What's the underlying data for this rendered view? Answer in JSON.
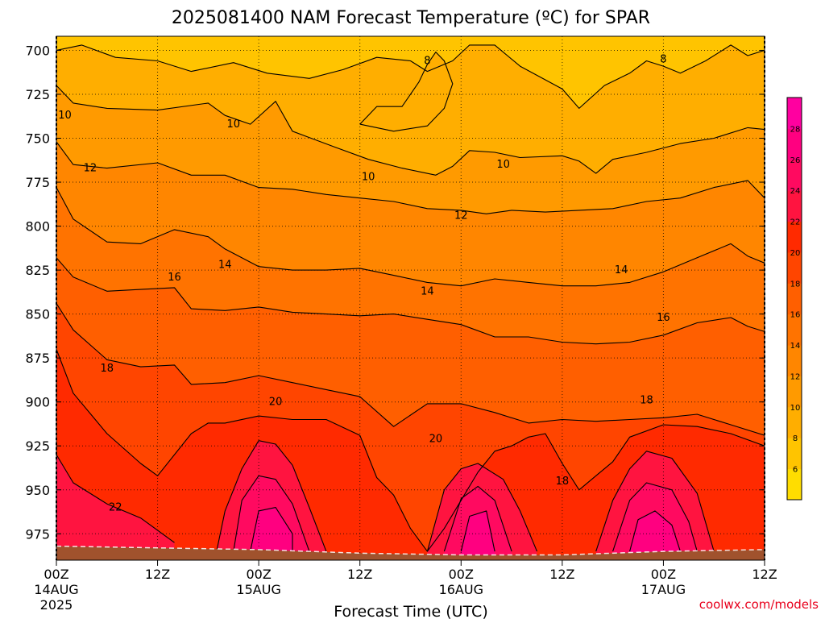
{
  "chart_data": {
    "type": "heatmap",
    "title": "2025081400 NAM Forecast Temperature (ºC) for SPAR",
    "xlabel": "Forecast Time (UTC)",
    "ylabel": "",
    "credit": "coolwx.com/models",
    "x_hours_range": [
      0,
      84
    ],
    "x_ticks": [
      {
        "hour": 0,
        "label": "00Z",
        "sub": "14AUG",
        "year": "2025"
      },
      {
        "hour": 12,
        "label": "12Z",
        "sub": "",
        "year": ""
      },
      {
        "hour": 24,
        "label": "00Z",
        "sub": "15AUG",
        "year": ""
      },
      {
        "hour": 36,
        "label": "12Z",
        "sub": "",
        "year": ""
      },
      {
        "hour": 48,
        "label": "00Z",
        "sub": "16AUG",
        "year": ""
      },
      {
        "hour": 60,
        "label": "12Z",
        "sub": "",
        "year": ""
      },
      {
        "hour": 72,
        "label": "00Z",
        "sub": "17AUG",
        "year": ""
      },
      {
        "hour": 84,
        "label": "12Z",
        "sub": "",
        "year": ""
      }
    ],
    "y_pressure_range_hPa": [
      692,
      990
    ],
    "y_ticks": [
      700,
      725,
      750,
      775,
      800,
      825,
      850,
      875,
      900,
      925,
      950,
      975
    ],
    "grid": "dotted",
    "colorbar": {
      "placement": "right",
      "levels": [
        4,
        6,
        8,
        10,
        12,
        14,
        16,
        18,
        20,
        22,
        24,
        26,
        28,
        30
      ],
      "tick_labels": [
        "6",
        "8",
        "10",
        "12",
        "14",
        "16",
        "18",
        "20",
        "22",
        "24",
        "26",
        "28"
      ],
      "colors": [
        "#ffdd00",
        "#ffc400",
        "#ffae00",
        "#ff9a00",
        "#ff8600",
        "#ff7300",
        "#ff5f00",
        "#ff4500",
        "#ff2a00",
        "#ff1440",
        "#ff0a60",
        "#ff0080",
        "#ff00a0"
      ]
    },
    "terrain_color": "#a0522d",
    "terrain_top_hPa": [
      {
        "hour": 0,
        "p": 982
      },
      {
        "hour": 24,
        "p": 984
      },
      {
        "hour": 36,
        "p": 986
      },
      {
        "hour": 48,
        "p": 987
      },
      {
        "hour": 60,
        "p": 987
      },
      {
        "hour": 72,
        "p": 985
      },
      {
        "hour": 84,
        "p": 984
      }
    ],
    "isotherms": [
      {
        "value": 8,
        "points": [
          [
            0,
            700
          ],
          [
            3,
            697
          ],
          [
            7,
            704
          ],
          [
            12,
            706
          ],
          [
            16,
            712
          ],
          [
            21,
            707
          ],
          [
            25,
            713
          ],
          [
            30,
            716
          ],
          [
            34,
            711
          ],
          [
            38,
            704
          ],
          [
            42,
            706
          ],
          [
            44,
            712
          ],
          [
            47,
            706
          ],
          [
            49,
            697
          ],
          [
            52,
            697
          ],
          [
            55,
            709
          ],
          [
            60,
            722
          ],
          [
            62,
            733
          ],
          [
            65,
            720
          ],
          [
            68,
            713
          ],
          [
            70,
            706
          ],
          [
            72,
            709
          ],
          [
            74,
            713
          ],
          [
            77,
            706
          ],
          [
            80,
            697
          ],
          [
            82,
            703
          ],
          [
            84,
            700
          ]
        ]
      },
      {
        "value": 8,
        "points": [
          [
            36,
            742
          ],
          [
            38,
            732
          ],
          [
            41,
            732
          ],
          [
            43,
            718
          ],
          [
            44,
            708
          ],
          [
            45,
            701
          ],
          [
            46,
            706
          ],
          [
            47,
            719
          ],
          [
            46,
            733
          ],
          [
            44,
            743
          ],
          [
            40,
            746
          ],
          [
            36,
            742
          ]
        ]
      },
      {
        "value": 10,
        "points": [
          [
            0,
            720
          ],
          [
            2,
            730
          ],
          [
            6,
            733
          ],
          [
            12,
            734
          ],
          [
            18,
            730
          ],
          [
            20,
            737
          ],
          [
            23,
            742
          ],
          [
            26,
            729
          ],
          [
            28,
            746
          ],
          [
            33,
            755
          ],
          [
            37,
            762
          ],
          [
            41,
            767
          ],
          [
            45,
            771
          ],
          [
            47,
            766
          ],
          [
            49,
            757
          ],
          [
            52,
            758
          ],
          [
            55,
            761
          ],
          [
            60,
            760
          ],
          [
            62,
            763
          ],
          [
            64,
            770
          ],
          [
            66,
            762
          ],
          [
            70,
            758
          ],
          [
            74,
            753
          ],
          [
            78,
            750
          ],
          [
            82,
            744
          ],
          [
            84,
            745
          ]
        ]
      },
      {
        "value": 12,
        "points": [
          [
            0,
            752
          ],
          [
            2,
            765
          ],
          [
            6,
            767
          ],
          [
            12,
            764
          ],
          [
            16,
            771
          ],
          [
            20,
            771
          ],
          [
            24,
            778
          ],
          [
            28,
            779
          ],
          [
            32,
            782
          ],
          [
            36,
            784
          ],
          [
            40,
            786
          ],
          [
            44,
            790
          ],
          [
            48,
            791
          ],
          [
            51,
            793
          ],
          [
            54,
            791
          ],
          [
            58,
            792
          ],
          [
            62,
            791
          ],
          [
            66,
            790
          ],
          [
            70,
            786
          ],
          [
            74,
            784
          ],
          [
            78,
            778
          ],
          [
            82,
            774
          ],
          [
            84,
            784
          ]
        ]
      },
      {
        "value": 14,
        "points": [
          [
            0,
            778
          ],
          [
            2,
            796
          ],
          [
            6,
            809
          ],
          [
            10,
            810
          ],
          [
            14,
            802
          ],
          [
            18,
            806
          ],
          [
            20,
            813
          ],
          [
            24,
            823
          ],
          [
            28,
            825
          ],
          [
            32,
            825
          ],
          [
            36,
            824
          ],
          [
            40,
            828
          ],
          [
            44,
            832
          ],
          [
            48,
            834
          ],
          [
            52,
            830
          ],
          [
            56,
            832
          ],
          [
            60,
            834
          ],
          [
            64,
            834
          ],
          [
            68,
            832
          ],
          [
            72,
            826
          ],
          [
            76,
            818
          ],
          [
            80,
            810
          ],
          [
            82,
            817
          ],
          [
            84,
            821
          ]
        ]
      },
      {
        "value": 16,
        "points": [
          [
            0,
            818
          ],
          [
            2,
            829
          ],
          [
            6,
            837
          ],
          [
            10,
            836
          ],
          [
            14,
            835
          ],
          [
            16,
            847
          ],
          [
            20,
            848
          ],
          [
            24,
            846
          ],
          [
            28,
            849
          ],
          [
            32,
            850
          ],
          [
            36,
            851
          ],
          [
            40,
            850
          ],
          [
            44,
            853
          ],
          [
            48,
            856
          ],
          [
            52,
            863
          ],
          [
            56,
            863
          ],
          [
            60,
            866
          ],
          [
            64,
            867
          ],
          [
            68,
            866
          ],
          [
            72,
            862
          ],
          [
            76,
            855
          ],
          [
            80,
            852
          ],
          [
            82,
            857
          ],
          [
            84,
            860
          ]
        ]
      },
      {
        "value": 18,
        "points": [
          [
            0,
            844
          ],
          [
            2,
            859
          ],
          [
            6,
            876
          ],
          [
            10,
            880
          ],
          [
            14,
            879
          ],
          [
            16,
            890
          ],
          [
            20,
            889
          ],
          [
            24,
            885
          ],
          [
            28,
            889
          ],
          [
            32,
            893
          ],
          [
            36,
            897
          ],
          [
            40,
            914
          ],
          [
            44,
            901
          ],
          [
            48,
            901
          ],
          [
            52,
            906
          ],
          [
            56,
            912
          ],
          [
            60,
            910
          ],
          [
            64,
            911
          ],
          [
            68,
            910
          ],
          [
            72,
            909
          ],
          [
            76,
            907
          ],
          [
            80,
            913
          ],
          [
            84,
            919
          ]
        ]
      },
      {
        "value": 20,
        "points": [
          [
            0,
            870
          ],
          [
            2,
            895
          ],
          [
            6,
            918
          ],
          [
            10,
            935
          ],
          [
            12,
            942
          ],
          [
            16,
            918
          ],
          [
            18,
            912
          ],
          [
            20,
            912
          ],
          [
            24,
            908
          ],
          [
            28,
            910
          ],
          [
            32,
            910
          ],
          [
            36,
            919
          ],
          [
            38,
            943
          ],
          [
            40,
            953
          ],
          [
            42,
            972
          ],
          [
            44,
            985
          ],
          [
            46,
            972
          ],
          [
            48,
            956
          ],
          [
            50,
            940
          ],
          [
            52,
            928
          ],
          [
            54,
            925
          ],
          [
            56,
            920
          ],
          [
            58,
            918
          ],
          [
            60,
            935
          ],
          [
            62,
            950
          ],
          [
            64,
            942
          ],
          [
            66,
            934
          ],
          [
            68,
            920
          ],
          [
            72,
            913
          ],
          [
            76,
            914
          ],
          [
            80,
            918
          ],
          [
            84,
            925
          ]
        ]
      },
      {
        "value": 22,
        "points": [
          [
            0,
            930
          ],
          [
            2,
            946
          ],
          [
            6,
            958
          ],
          [
            10,
            966
          ],
          [
            14,
            980
          ]
        ]
      },
      {
        "value": 22,
        "points": [
          [
            19,
            985
          ],
          [
            20,
            962
          ],
          [
            22,
            938
          ],
          [
            24,
            922
          ],
          [
            26,
            924
          ],
          [
            28,
            936
          ],
          [
            30,
            960
          ],
          [
            32,
            985
          ]
        ]
      },
      {
        "value": 22,
        "points": [
          [
            44,
            985
          ],
          [
            46,
            950
          ],
          [
            48,
            938
          ],
          [
            50,
            935
          ],
          [
            53,
            944
          ],
          [
            55,
            962
          ],
          [
            57,
            985
          ]
        ]
      },
      {
        "value": 22,
        "points": [
          [
            64,
            985
          ],
          [
            66,
            956
          ],
          [
            68,
            938
          ],
          [
            70,
            928
          ],
          [
            73,
            932
          ],
          [
            76,
            952
          ],
          [
            78,
            985
          ]
        ]
      },
      {
        "value": 24,
        "points": [
          [
            21,
            985
          ],
          [
            22,
            956
          ],
          [
            24,
            942
          ],
          [
            26,
            944
          ],
          [
            28,
            958
          ],
          [
            30,
            985
          ]
        ]
      },
      {
        "value": 24,
        "points": [
          [
            46,
            985
          ],
          [
            48,
            955
          ],
          [
            50,
            948
          ],
          [
            52,
            956
          ],
          [
            54,
            985
          ]
        ]
      },
      {
        "value": 24,
        "points": [
          [
            66,
            985
          ],
          [
            68,
            956
          ],
          [
            70,
            946
          ],
          [
            73,
            950
          ],
          [
            75,
            968
          ],
          [
            76,
            985
          ]
        ]
      },
      {
        "value": 26,
        "points": [
          [
            23,
            985
          ],
          [
            24,
            962
          ],
          [
            26,
            960
          ],
          [
            28,
            975
          ],
          [
            28,
            985
          ]
        ]
      },
      {
        "value": 26,
        "points": [
          [
            48,
            985
          ],
          [
            49,
            965
          ],
          [
            51,
            962
          ],
          [
            52,
            985
          ]
        ]
      },
      {
        "value": 26,
        "points": [
          [
            68,
            985
          ],
          [
            69,
            967
          ],
          [
            71,
            962
          ],
          [
            73,
            970
          ],
          [
            74,
            985
          ]
        ]
      }
    ],
    "contour_labels": [
      {
        "text": "8",
        "hour": 44.0,
        "p": 706
      },
      {
        "text": "8",
        "hour": 72.0,
        "p": 705
      },
      {
        "text": "10",
        "hour": 1.0,
        "p": 737
      },
      {
        "text": "10",
        "hour": 21.0,
        "p": 742
      },
      {
        "text": "10",
        "hour": 37.0,
        "p": 772
      },
      {
        "text": "10",
        "hour": 53.0,
        "p": 765
      },
      {
        "text": "12",
        "hour": 4.0,
        "p": 767
      },
      {
        "text": "12",
        "hour": 48.0,
        "p": 794
      },
      {
        "text": "14",
        "hour": 20.0,
        "p": 822
      },
      {
        "text": "14",
        "hour": 44.0,
        "p": 837
      },
      {
        "text": "14",
        "hour": 67.0,
        "p": 825
      },
      {
        "text": "16",
        "hour": 14.0,
        "p": 829
      },
      {
        "text": "16",
        "hour": 72.0,
        "p": 852
      },
      {
        "text": "18",
        "hour": 6.0,
        "p": 881
      },
      {
        "text": "18",
        "hour": 70.0,
        "p": 899
      },
      {
        "text": "18",
        "hour": 60.0,
        "p": 945
      },
      {
        "text": "20",
        "hour": 26.0,
        "p": 900
      },
      {
        "text": "20",
        "hour": 45.0,
        "p": 921
      },
      {
        "text": "22",
        "hour": 7.0,
        "p": 960
      }
    ]
  }
}
